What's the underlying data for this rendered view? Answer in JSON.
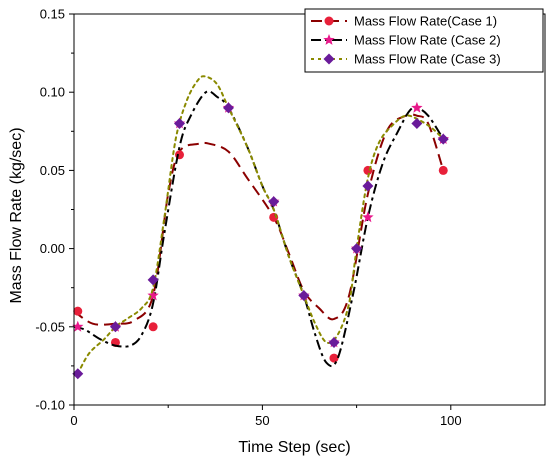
{
  "chart_data": {
    "type": "line",
    "xlabel": "Time Step (sec)",
    "ylabel": "Mass Flow Rate (kg/sec)",
    "xlim": [
      0,
      125
    ],
    "ylim": [
      -0.1,
      0.15
    ],
    "xticks": [
      0,
      50,
      100
    ],
    "xtick_labels": [
      "0",
      "50",
      "100"
    ],
    "yticks": [
      -0.1,
      -0.05,
      0.0,
      0.05,
      0.1,
      0.15
    ],
    "ytick_labels": [
      "-0.10",
      "-0.05",
      "0.00",
      "0.05",
      "0.10",
      "0.15"
    ],
    "grid": false,
    "legend_position": "top-right",
    "series": [
      {
        "name": "Mass Flow Rate(Case 1)",
        "color": "#8b0000",
        "marker_color": "#e8203a",
        "marker": "circle",
        "line_style": "dashed",
        "curve": [
          [
            0,
            -0.04
          ],
          [
            5,
            -0.048
          ],
          [
            11,
            -0.048
          ],
          [
            16,
            -0.046
          ],
          [
            21,
            -0.03
          ],
          [
            25,
            0.035
          ],
          [
            28,
            0.062
          ],
          [
            33,
            0.067
          ],
          [
            36,
            0.067
          ],
          [
            41,
            0.062
          ],
          [
            46,
            0.045
          ],
          [
            53,
            0.02
          ],
          [
            57,
            -0.003
          ],
          [
            61,
            -0.027
          ],
          [
            65,
            -0.038
          ],
          [
            69,
            -0.045
          ],
          [
            73,
            -0.03
          ],
          [
            78,
            0.035
          ],
          [
            83,
            0.075
          ],
          [
            88,
            0.085
          ],
          [
            91,
            0.085
          ],
          [
            94,
            0.08
          ],
          [
            98,
            0.05
          ]
        ],
        "points": [
          [
            1,
            -0.04
          ],
          [
            11,
            -0.06
          ],
          [
            21,
            -0.05
          ],
          [
            28,
            0.06
          ],
          [
            53,
            0.02
          ],
          [
            69,
            -0.07
          ],
          [
            78,
            0.05
          ],
          [
            98,
            0.05
          ]
        ]
      },
      {
        "name": "Mass Flow Rate (Case 2)",
        "color": "#000000",
        "marker_color": "#e8188a",
        "marker": "star",
        "line_style": "dashdot",
        "curve": [
          [
            0,
            -0.05
          ],
          [
            3,
            -0.052
          ],
          [
            7,
            -0.058
          ],
          [
            11,
            -0.062
          ],
          [
            15,
            -0.062
          ],
          [
            18,
            -0.055
          ],
          [
            21,
            -0.035
          ],
          [
            24,
            0.01
          ],
          [
            28,
            0.065
          ],
          [
            31,
            0.085
          ],
          [
            35,
            0.1
          ],
          [
            38,
            0.097
          ],
          [
            41,
            0.09
          ],
          [
            46,
            0.065
          ],
          [
            50,
            0.04
          ],
          [
            53,
            0.025
          ],
          [
            57,
            -0.005
          ],
          [
            61,
            -0.03
          ],
          [
            64,
            -0.055
          ],
          [
            67,
            -0.073
          ],
          [
            70,
            -0.07
          ],
          [
            74,
            -0.03
          ],
          [
            78,
            0.02
          ],
          [
            82,
            0.055
          ],
          [
            86,
            0.075
          ],
          [
            89,
            0.088
          ],
          [
            91,
            0.09
          ],
          [
            94,
            0.085
          ],
          [
            98,
            0.07
          ]
        ],
        "points": [
          [
            1,
            -0.05
          ],
          [
            11,
            -0.05
          ],
          [
            21,
            -0.03
          ],
          [
            28,
            0.08
          ],
          [
            41,
            0.09
          ],
          [
            53,
            0.03
          ],
          [
            61,
            -0.03
          ],
          [
            69,
            -0.06
          ],
          [
            75,
            0.0
          ],
          [
            78,
            0.02
          ],
          [
            91,
            0.09
          ],
          [
            98,
            0.07
          ]
        ]
      },
      {
        "name": "Mass Flow Rate (Case 3)",
        "color": "#8a8a00",
        "marker_color": "#6a1b9a",
        "marker": "diamond",
        "line_style": "dotted",
        "curve": [
          [
            1,
            -0.08
          ],
          [
            4,
            -0.067
          ],
          [
            8,
            -0.058
          ],
          [
            11,
            -0.05
          ],
          [
            14,
            -0.045
          ],
          [
            18,
            -0.038
          ],
          [
            21,
            -0.025
          ],
          [
            24,
            0.02
          ],
          [
            27,
            0.07
          ],
          [
            30,
            0.095
          ],
          [
            33,
            0.108
          ],
          [
            35,
            0.11
          ],
          [
            38,
            0.105
          ],
          [
            41,
            0.09
          ],
          [
            46,
            0.065
          ],
          [
            50,
            0.04
          ],
          [
            53,
            0.025
          ],
          [
            57,
            -0.005
          ],
          [
            61,
            -0.03
          ],
          [
            64,
            -0.048
          ],
          [
            67,
            -0.06
          ],
          [
            70,
            -0.055
          ],
          [
            73,
            -0.035
          ],
          [
            75,
            0.0
          ],
          [
            78,
            0.045
          ],
          [
            81,
            0.068
          ],
          [
            85,
            0.08
          ],
          [
            88,
            0.085
          ],
          [
            91,
            0.083
          ],
          [
            95,
            0.077
          ],
          [
            98,
            0.07
          ]
        ],
        "points": [
          [
            1,
            -0.08
          ],
          [
            11,
            -0.05
          ],
          [
            21,
            -0.02
          ],
          [
            28,
            0.08
          ],
          [
            41,
            0.09
          ],
          [
            53,
            0.03
          ],
          [
            61,
            -0.03
          ],
          [
            69,
            -0.06
          ],
          [
            75,
            0.0
          ],
          [
            78,
            0.04
          ],
          [
            91,
            0.08
          ],
          [
            98,
            0.07
          ]
        ]
      }
    ]
  }
}
